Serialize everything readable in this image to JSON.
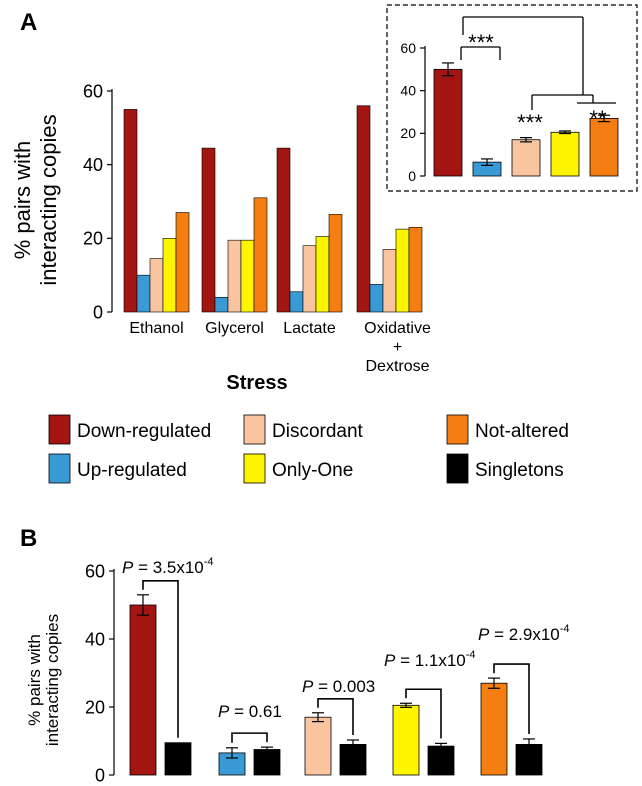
{
  "panel_labels": {
    "a": "A",
    "b": "B"
  },
  "colors": {
    "down_regulated": "#a31512",
    "up_regulated": "#3a9ad6",
    "discordant": "#f9c5a0",
    "only_one": "#fdf400",
    "not_altered": "#f57e12",
    "singletons": "#000000"
  },
  "legend": [
    {
      "label": "Down-regulated",
      "color_key": "down_regulated"
    },
    {
      "label": "Discordant",
      "color_key": "discordant"
    },
    {
      "label": "Not-altered",
      "color_key": "not_altered"
    },
    {
      "label": "Up-regulated",
      "color_key": "up_regulated"
    },
    {
      "label": "Only-One",
      "color_key": "only_one"
    },
    {
      "label": "Singletons",
      "color_key": "singletons"
    }
  ],
  "chart_data": [
    {
      "id": "panel-a-main",
      "type": "bar",
      "ylabel": [
        "% pairs with",
        "interacting copies"
      ],
      "xlabel": "Stress",
      "ylim": [
        0,
        60
      ],
      "yticks": [
        "0",
        "20",
        "40",
        "60"
      ],
      "categories": [
        [
          "Ethanol"
        ],
        [
          "Glycerol"
        ],
        [
          "Lactate"
        ],
        [
          "Oxidative",
          "+",
          "Dextrose"
        ]
      ],
      "series": [
        {
          "name": "Down-regulated",
          "color_key": "down_regulated",
          "values": [
            55,
            44.5,
            44.5,
            56
          ]
        },
        {
          "name": "Up-regulated",
          "color_key": "up_regulated",
          "values": [
            10,
            4,
            5.5,
            7.5
          ]
        },
        {
          "name": "Discordant",
          "color_key": "discordant",
          "values": [
            14.5,
            19.5,
            18,
            17
          ]
        },
        {
          "name": "Only-One",
          "color_key": "only_one",
          "values": [
            20,
            19.5,
            20.5,
            22.5
          ]
        },
        {
          "name": "Not-altered",
          "color_key": "not_altered",
          "values": [
            27,
            31,
            26.5,
            23
          ]
        }
      ],
      "grid": false
    },
    {
      "id": "panel-a-inset",
      "type": "bar",
      "ylim": [
        0,
        60
      ],
      "yticks": [
        "0",
        "20",
        "40",
        "60"
      ],
      "bars": [
        {
          "color_key": "down_regulated",
          "value": 50,
          "error": 3
        },
        {
          "color_key": "up_regulated",
          "value": 6.5,
          "error": 1.5
        },
        {
          "color_key": "discordant",
          "value": 17,
          "error": 1
        },
        {
          "color_key": "only_one",
          "value": 20.5,
          "error": 0.6
        },
        {
          "color_key": "not_altered",
          "value": 27,
          "error": 1.5
        }
      ],
      "significance": [
        "***",
        "***",
        "**"
      ],
      "grid": false
    },
    {
      "id": "panel-b",
      "type": "bar",
      "ylabel": [
        "% pairs with",
        "interacting copies"
      ],
      "ylim": [
        0,
        60
      ],
      "yticks": [
        "0",
        "20",
        "40",
        "60"
      ],
      "groups": [
        {
          "bars": [
            {
              "color_key": "down_regulated",
              "value": 50,
              "error": 3
            },
            {
              "color_key": "singletons",
              "value": 9.5,
              "error": 0
            }
          ],
          "p_prefix": "P",
          "p_text": " = 3.5x10",
          "p_exp": "-4"
        },
        {
          "bars": [
            {
              "color_key": "up_regulated",
              "value": 6.5,
              "error": 1.5
            },
            {
              "color_key": "singletons",
              "value": 7.5,
              "error": 0.7
            }
          ],
          "p_prefix": "P",
          "p_text": " = 0.61",
          "p_exp": ""
        },
        {
          "bars": [
            {
              "color_key": "discordant",
              "value": 17,
              "error": 1.3
            },
            {
              "color_key": "singletons",
              "value": 9,
              "error": 1.3
            }
          ],
          "p_prefix": "P",
          "p_text": " = 0.003",
          "p_exp": ""
        },
        {
          "bars": [
            {
              "color_key": "only_one",
              "value": 20.5,
              "error": 0.6
            },
            {
              "color_key": "singletons",
              "value": 8.5,
              "error": 0.8
            }
          ],
          "p_prefix": "P",
          "p_text": " = 1.1x10",
          "p_exp": "-4"
        },
        {
          "bars": [
            {
              "color_key": "not_altered",
              "value": 27,
              "error": 1.5
            },
            {
              "color_key": "singletons",
              "value": 9,
              "error": 1.6
            }
          ],
          "p_prefix": "P",
          "p_text": " = 2.9x10",
          "p_exp": "-4"
        }
      ],
      "grid": false
    }
  ]
}
